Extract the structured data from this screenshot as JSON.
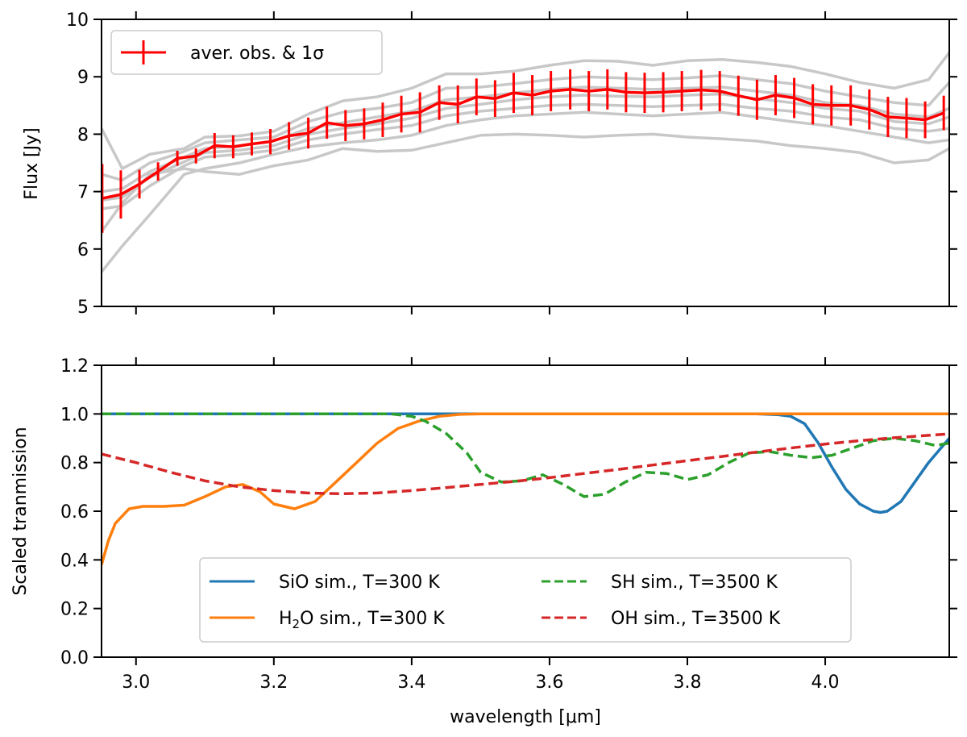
{
  "chart_data": [
    {
      "type": "line",
      "ylabel": "Flux [Jy]",
      "xlabel": "",
      "xlim": [
        2.95,
        4.18
      ],
      "ylim": [
        5,
        10
      ],
      "x_ticks": [
        3.0,
        3.2,
        3.4,
        3.6,
        3.8,
        4.0
      ],
      "x_tick_labels": [
        "",
        "",
        "",
        "",
        "",
        ""
      ],
      "y_ticks": [
        5,
        6,
        7,
        8,
        9,
        10
      ],
      "y_tick_labels": [
        "5",
        "6",
        "7",
        "8",
        "9",
        "10"
      ],
      "grid": false,
      "legend_position": "upper-left",
      "colors": {
        "average": "#ff0000",
        "individual": "#c8c8c8"
      },
      "series": [
        {
          "name": "aver. obs. & 1σ",
          "x": [
            2.951,
            2.978,
            3.005,
            3.032,
            3.06,
            3.087,
            3.114,
            3.141,
            3.168,
            3.195,
            3.222,
            3.25,
            3.277,
            3.304,
            3.331,
            3.358,
            3.385,
            3.412,
            3.44,
            3.467,
            3.494,
            3.521,
            3.548,
            3.575,
            3.602,
            3.63,
            3.657,
            3.684,
            3.711,
            3.738,
            3.765,
            3.792,
            3.82,
            3.847,
            3.874,
            3.901,
            3.928,
            3.955,
            3.982,
            4.009,
            4.037,
            4.064,
            4.091,
            4.118,
            4.145,
            4.172
          ],
          "y": [
            6.88,
            6.95,
            7.13,
            7.35,
            7.58,
            7.62,
            7.8,
            7.78,
            7.83,
            7.87,
            7.97,
            8.02,
            8.2,
            8.15,
            8.18,
            8.25,
            8.35,
            8.38,
            8.55,
            8.52,
            8.65,
            8.62,
            8.72,
            8.68,
            8.75,
            8.78,
            8.75,
            8.78,
            8.73,
            8.72,
            8.73,
            8.75,
            8.77,
            8.75,
            8.67,
            8.6,
            8.68,
            8.63,
            8.52,
            8.5,
            8.5,
            8.43,
            8.3,
            8.28,
            8.25,
            8.37
          ],
          "err": [
            0.6,
            0.42,
            0.25,
            0.16,
            0.13,
            0.13,
            0.22,
            0.2,
            0.2,
            0.22,
            0.24,
            0.27,
            0.28,
            0.27,
            0.27,
            0.3,
            0.32,
            0.35,
            0.3,
            0.33,
            0.32,
            0.32,
            0.35,
            0.35,
            0.35,
            0.35,
            0.35,
            0.35,
            0.35,
            0.35,
            0.35,
            0.35,
            0.35,
            0.35,
            0.35,
            0.35,
            0.35,
            0.35,
            0.35,
            0.35,
            0.35,
            0.35,
            0.35,
            0.35,
            0.32,
            0.3
          ]
        }
      ],
      "individual_spectra": [
        {
          "x": [
            2.95,
            2.98,
            3.02,
            3.07,
            3.1,
            3.15,
            3.2,
            3.25,
            3.3,
            3.35,
            3.4,
            3.45,
            3.5,
            3.55,
            3.6,
            3.65,
            3.7,
            3.75,
            3.8,
            3.85,
            3.9,
            3.95,
            4.0,
            4.05,
            4.1,
            4.15,
            4.18
          ],
          "y": [
            8.1,
            7.4,
            7.65,
            7.75,
            7.95,
            7.97,
            8.05,
            8.35,
            8.58,
            8.65,
            8.8,
            9.05,
            9.05,
            9.1,
            9.2,
            9.28,
            9.27,
            9.2,
            9.28,
            9.3,
            9.25,
            9.18,
            9.05,
            8.9,
            8.8,
            8.95,
            9.42
          ]
        },
        {
          "x": [
            2.95,
            2.98,
            3.02,
            3.07,
            3.1,
            3.15,
            3.2,
            3.25,
            3.3,
            3.35,
            3.4,
            3.45,
            3.5,
            3.55,
            3.6,
            3.65,
            3.7,
            3.75,
            3.8,
            3.85,
            3.9,
            3.95,
            4.0,
            4.05,
            4.1,
            4.15,
            4.18
          ],
          "y": [
            7.3,
            7.2,
            7.5,
            7.7,
            7.85,
            7.9,
            7.95,
            8.22,
            8.38,
            8.45,
            8.55,
            8.8,
            8.82,
            8.88,
            8.95,
            9.0,
            8.98,
            8.95,
            8.98,
            9.02,
            8.95,
            8.88,
            8.75,
            8.65,
            8.55,
            8.5,
            8.9
          ]
        },
        {
          "x": [
            2.95,
            2.98,
            3.02,
            3.07,
            3.1,
            3.15,
            3.2,
            3.25,
            3.3,
            3.35,
            3.4,
            3.45,
            3.5,
            3.55,
            3.6,
            3.65,
            3.7,
            3.75,
            3.8,
            3.85,
            3.9,
            3.95,
            4.0,
            4.05,
            4.1,
            4.15,
            4.18
          ],
          "y": [
            7.0,
            7.05,
            7.35,
            7.6,
            7.75,
            7.8,
            7.88,
            8.1,
            8.2,
            8.3,
            8.4,
            8.6,
            8.65,
            8.72,
            8.78,
            8.82,
            8.8,
            8.78,
            8.8,
            8.82,
            8.75,
            8.68,
            8.55,
            8.5,
            8.35,
            8.3,
            8.45
          ]
        },
        {
          "x": [
            2.95,
            2.98,
            3.02,
            3.07,
            3.1,
            3.15,
            3.2,
            3.25,
            3.3,
            3.35,
            3.4,
            3.45,
            3.5,
            3.55,
            3.6,
            3.65,
            3.7,
            3.75,
            3.8,
            3.85,
            3.9,
            3.95,
            4.0,
            4.05,
            4.1,
            4.15,
            4.18
          ],
          "y": [
            6.85,
            6.9,
            7.25,
            7.52,
            7.68,
            7.72,
            7.8,
            8.0,
            8.1,
            8.18,
            8.28,
            8.45,
            8.52,
            8.6,
            8.65,
            8.68,
            8.66,
            8.65,
            8.68,
            8.7,
            8.62,
            8.55,
            8.45,
            8.4,
            8.22,
            8.18,
            8.3
          ]
        },
        {
          "x": [
            2.95,
            2.98,
            3.02,
            3.07,
            3.1,
            3.15,
            3.2,
            3.25,
            3.3,
            3.35,
            3.4,
            3.45,
            3.5,
            3.55,
            3.6,
            3.65,
            3.7,
            3.75,
            3.8,
            3.85,
            3.9,
            3.95,
            4.0,
            4.05,
            4.1,
            4.15,
            4.18
          ],
          "y": [
            6.7,
            6.75,
            7.1,
            7.45,
            7.6,
            7.65,
            7.72,
            7.9,
            8.0,
            8.08,
            8.15,
            8.32,
            8.4,
            8.45,
            8.5,
            8.52,
            8.5,
            8.48,
            8.5,
            8.52,
            8.45,
            8.4,
            8.3,
            8.25,
            8.1,
            8.05,
            8.1
          ]
        },
        {
          "x": [
            2.95,
            2.98,
            3.02,
            3.07,
            3.1,
            3.15,
            3.2,
            3.25,
            3.3,
            3.35,
            3.4,
            3.45,
            3.5,
            3.55,
            3.6,
            3.65,
            3.7,
            3.75,
            3.8,
            3.85,
            3.9,
            3.95,
            4.0,
            4.05,
            4.1,
            4.15,
            4.18
          ],
          "y": [
            5.6,
            6.05,
            6.6,
            7.3,
            7.4,
            7.5,
            7.65,
            7.78,
            7.85,
            7.9,
            7.98,
            8.15,
            8.25,
            8.32,
            8.35,
            8.38,
            8.35,
            8.32,
            8.35,
            8.38,
            8.3,
            8.22,
            8.15,
            8.05,
            7.95,
            7.85,
            7.9
          ]
        },
        {
          "x": [
            2.95,
            2.98,
            3.02,
            3.07,
            3.1,
            3.15,
            3.2,
            3.25,
            3.3,
            3.35,
            3.4,
            3.45,
            3.5,
            3.55,
            3.6,
            3.65,
            3.7,
            3.75,
            3.8,
            3.85,
            3.9,
            3.95,
            4.0,
            4.05,
            4.1,
            4.15,
            4.18
          ],
          "y": [
            6.3,
            6.8,
            7.3,
            7.4,
            7.35,
            7.3,
            7.45,
            7.55,
            7.75,
            7.7,
            7.72,
            7.85,
            7.98,
            8.0,
            7.98,
            7.95,
            7.98,
            8.0,
            7.95,
            7.92,
            7.88,
            7.8,
            7.75,
            7.68,
            7.5,
            7.55,
            7.75
          ]
        }
      ]
    },
    {
      "type": "line",
      "xlabel": "wavelength [μm]",
      "ylabel": "Scaled tranmission",
      "xlim": [
        2.95,
        4.18
      ],
      "ylim": [
        0,
        1.2
      ],
      "x_ticks": [
        3.0,
        3.2,
        3.4,
        3.6,
        3.8,
        4.0
      ],
      "x_tick_labels": [
        "3.0",
        "3.2",
        "3.4",
        "3.6",
        "3.8",
        "4.0"
      ],
      "y_ticks": [
        0,
        0.2,
        0.4,
        0.6,
        0.8,
        1.0,
        1.2
      ],
      "y_tick_labels": [
        "0.0",
        "0.2",
        "0.4",
        "0.6",
        "0.8",
        "1.0",
        "1.2"
      ],
      "grid": false,
      "legend_position": "lower-center",
      "legend_columns": 2,
      "series": [
        {
          "name": "SiO sim., T=300 K",
          "color": "#1f77b4",
          "dash": "solid",
          "x": [
            2.95,
            3.5,
            3.9,
            3.93,
            3.95,
            3.97,
            3.99,
            4.01,
            4.03,
            4.05,
            4.07,
            4.08,
            4.09,
            4.11,
            4.13,
            4.15,
            4.18
          ],
          "y": [
            1.0,
            1.0,
            1.0,
            0.997,
            0.99,
            0.96,
            0.88,
            0.78,
            0.69,
            0.63,
            0.6,
            0.595,
            0.6,
            0.64,
            0.72,
            0.8,
            0.9
          ]
        },
        {
          "name": "H₂O sim., T=300 K",
          "name_base": "H",
          "name_sub": "2",
          "name_rest": "O sim., T=300 K",
          "color": "#ff7f0e",
          "dash": "solid",
          "x": [
            2.95,
            2.96,
            2.97,
            2.99,
            3.01,
            3.04,
            3.07,
            3.1,
            3.13,
            3.155,
            3.18,
            3.2,
            3.23,
            3.26,
            3.29,
            3.32,
            3.35,
            3.38,
            3.41,
            3.44,
            3.47,
            3.5,
            4.18
          ],
          "y": [
            0.38,
            0.48,
            0.55,
            0.61,
            0.62,
            0.62,
            0.625,
            0.66,
            0.7,
            0.71,
            0.68,
            0.63,
            0.61,
            0.64,
            0.72,
            0.8,
            0.88,
            0.94,
            0.97,
            0.99,
            0.998,
            1.0,
            1.0
          ]
        },
        {
          "name": "SH sim., T=3500 K",
          "color": "#2ca02c",
          "dash": "dashed",
          "x": [
            2.95,
            3.3,
            3.37,
            3.4,
            3.42,
            3.45,
            3.48,
            3.5,
            3.53,
            3.56,
            3.59,
            3.62,
            3.65,
            3.68,
            3.71,
            3.74,
            3.77,
            3.8,
            3.83,
            3.86,
            3.89,
            3.92,
            3.95,
            3.98,
            4.01,
            4.04,
            4.07,
            4.1,
            4.13,
            4.16,
            4.18
          ],
          "y": [
            1.0,
            1.0,
            1.0,
            0.99,
            0.97,
            0.92,
            0.84,
            0.76,
            0.72,
            0.725,
            0.75,
            0.71,
            0.66,
            0.67,
            0.72,
            0.76,
            0.755,
            0.73,
            0.75,
            0.8,
            0.84,
            0.845,
            0.83,
            0.82,
            0.83,
            0.86,
            0.89,
            0.9,
            0.89,
            0.87,
            0.88
          ]
        },
        {
          "name": "OH sim., T=3500 K",
          "color": "#d62728",
          "dash": "dashed",
          "x": [
            2.95,
            3.0,
            3.05,
            3.1,
            3.15,
            3.2,
            3.25,
            3.3,
            3.35,
            3.4,
            3.45,
            3.5,
            3.55,
            3.6,
            3.65,
            3.7,
            3.75,
            3.8,
            3.85,
            3.9,
            3.95,
            4.0,
            4.05,
            4.1,
            4.15,
            4.18
          ],
          "y": [
            0.835,
            0.8,
            0.76,
            0.725,
            0.7,
            0.685,
            0.675,
            0.672,
            0.675,
            0.685,
            0.697,
            0.71,
            0.723,
            0.738,
            0.755,
            0.772,
            0.79,
            0.808,
            0.825,
            0.843,
            0.86,
            0.876,
            0.89,
            0.902,
            0.912,
            0.918
          ]
        }
      ]
    }
  ]
}
